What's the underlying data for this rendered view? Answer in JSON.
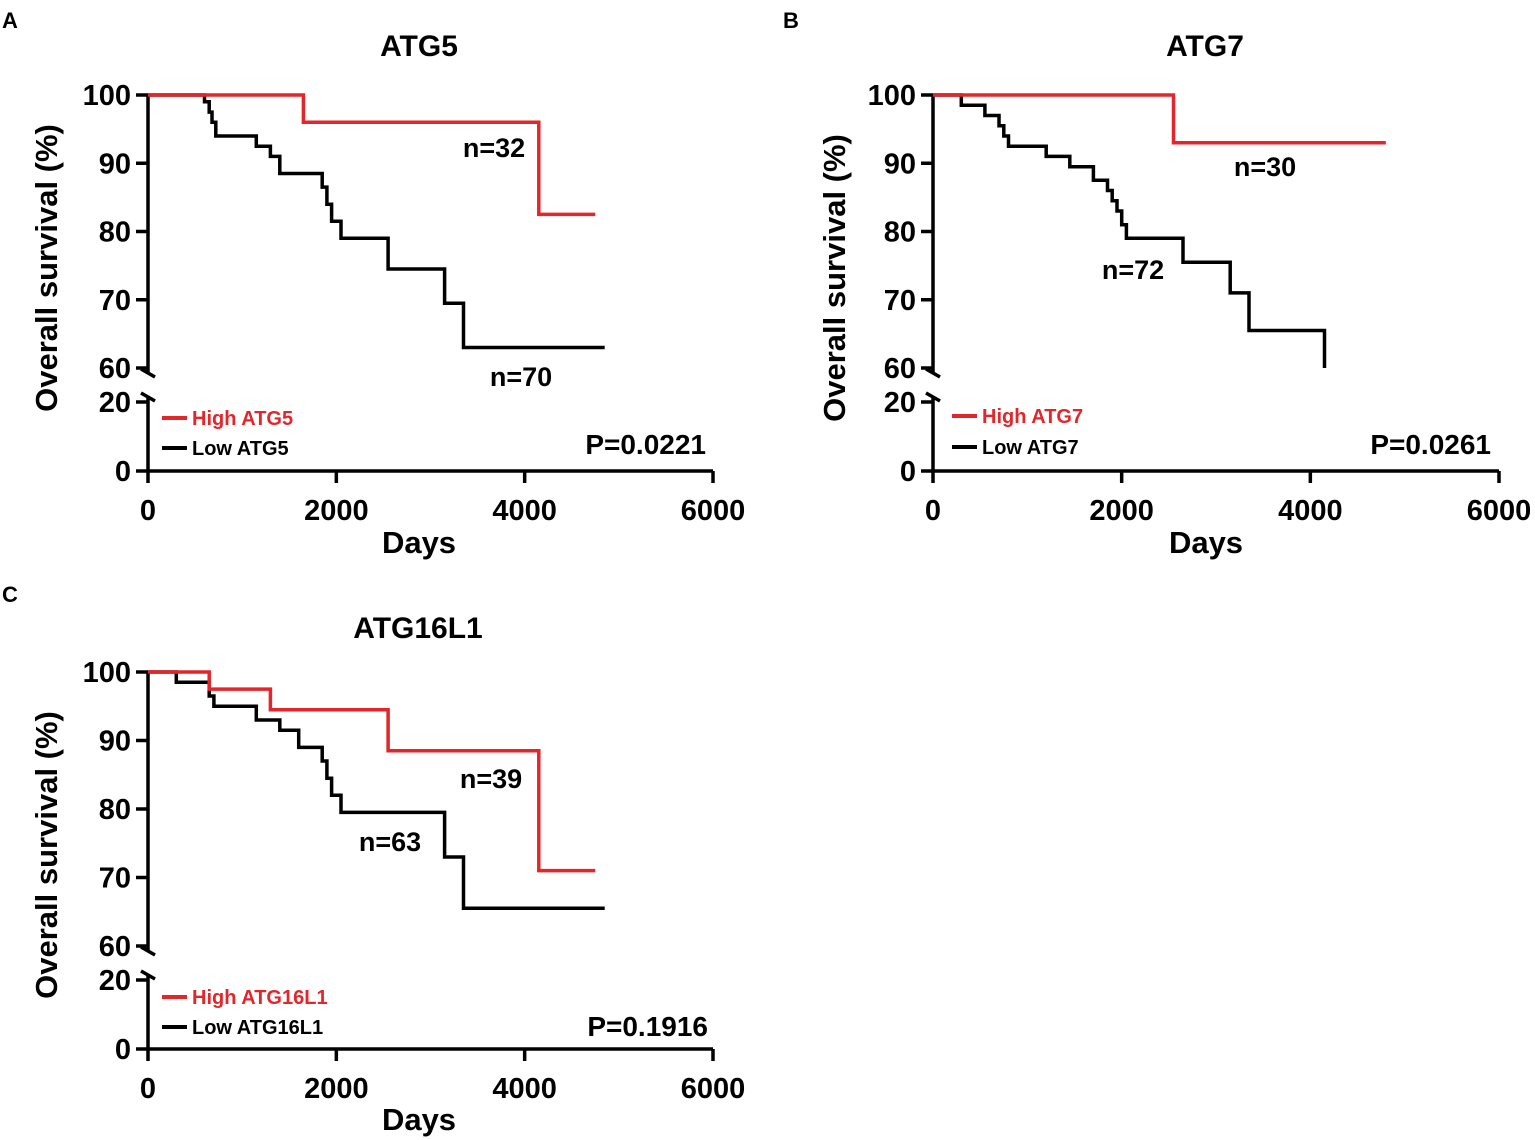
{
  "colors": {
    "high": "#e2262a",
    "low": "#000000"
  },
  "chart_data": [
    {
      "panel": "A",
      "type": "line",
      "step": true,
      "title": "ATG5",
      "xlabel": "Days",
      "ylabel": "Overall survival (%)",
      "xlim": [
        0,
        6000
      ],
      "xticks": [
        0,
        2000,
        4000,
        6000
      ],
      "yticks_upper": [
        60,
        70,
        80,
        90,
        100
      ],
      "yticks_lower": [
        0,
        20
      ],
      "y_axis_break": [
        20,
        60
      ],
      "legend_position": "bottom-left",
      "pvalue": "P=0.0221",
      "series": [
        {
          "key": "high",
          "name": "High ATG5",
          "n_label": "n=32",
          "points": [
            [
              0,
              100
            ],
            [
              1650,
              100
            ],
            [
              1650,
              96
            ],
            [
              4150,
              96
            ],
            [
              4150,
              82.5
            ],
            [
              4750,
              82.5
            ]
          ]
        },
        {
          "key": "low",
          "name": "Low ATG5",
          "n_label": "n=70",
          "points": [
            [
              0,
              100
            ],
            [
              600,
              100
            ],
            [
              600,
              99
            ],
            [
              650,
              99
            ],
            [
              650,
              97.5
            ],
            [
              680,
              97.5
            ],
            [
              680,
              96
            ],
            [
              720,
              96
            ],
            [
              720,
              94
            ],
            [
              1150,
              94
            ],
            [
              1150,
              92.5
            ],
            [
              1300,
              92.5
            ],
            [
              1300,
              91
            ],
            [
              1400,
              91
            ],
            [
              1400,
              88.5
            ],
            [
              1850,
              88.5
            ],
            [
              1850,
              86.5
            ],
            [
              1900,
              86.5
            ],
            [
              1900,
              84
            ],
            [
              1950,
              84
            ],
            [
              1950,
              81.5
            ],
            [
              2050,
              81.5
            ],
            [
              2050,
              79
            ],
            [
              2550,
              79
            ],
            [
              2550,
              74.5
            ],
            [
              3150,
              74.5
            ],
            [
              3150,
              69.5
            ],
            [
              3350,
              69.5
            ],
            [
              3350,
              63
            ],
            [
              4850,
              63
            ]
          ]
        }
      ]
    },
    {
      "panel": "B",
      "type": "line",
      "step": true,
      "title": "ATG7",
      "xlabel": "Days",
      "ylabel": "Overall survival (%)",
      "xlim": [
        0,
        6000
      ],
      "xticks": [
        0,
        2000,
        4000,
        6000
      ],
      "yticks_upper": [
        60,
        70,
        80,
        90,
        100
      ],
      "yticks_lower": [
        0,
        20
      ],
      "y_axis_break": [
        20,
        60
      ],
      "legend_position": "bottom-left",
      "pvalue": "P=0.0261",
      "series": [
        {
          "key": "high",
          "name": "High ATG7",
          "n_label": "n=30",
          "points": [
            [
              0,
              100
            ],
            [
              2550,
              100
            ],
            [
              2550,
              93
            ],
            [
              4800,
              93
            ]
          ]
        },
        {
          "key": "low",
          "name": "Low ATG7",
          "n_label": "n=72",
          "points": [
            [
              0,
              100
            ],
            [
              300,
              100
            ],
            [
              300,
              98.5
            ],
            [
              550,
              98.5
            ],
            [
              550,
              97
            ],
            [
              700,
              97
            ],
            [
              700,
              95.5
            ],
            [
              750,
              95.5
            ],
            [
              750,
              94
            ],
            [
              800,
              94
            ],
            [
              800,
              92.5
            ],
            [
              1200,
              92.5
            ],
            [
              1200,
              91
            ],
            [
              1450,
              91
            ],
            [
              1450,
              89.5
            ],
            [
              1700,
              89.5
            ],
            [
              1700,
              87.5
            ],
            [
              1850,
              87.5
            ],
            [
              1850,
              86
            ],
            [
              1900,
              86
            ],
            [
              1900,
              84.5
            ],
            [
              1950,
              84.5
            ],
            [
              1950,
              83
            ],
            [
              2000,
              83
            ],
            [
              2000,
              81
            ],
            [
              2050,
              81
            ],
            [
              2050,
              79
            ],
            [
              2650,
              79
            ],
            [
              2650,
              75.5
            ],
            [
              3150,
              75.5
            ],
            [
              3150,
              71
            ],
            [
              3350,
              71
            ],
            [
              3350,
              65.5
            ],
            [
              4150,
              65.5
            ],
            [
              4150,
              60
            ]
          ]
        }
      ]
    },
    {
      "panel": "C",
      "type": "line",
      "step": true,
      "title": "ATG16L1",
      "xlabel": "Days",
      "ylabel": "Overall survival (%)",
      "xlim": [
        0,
        6000
      ],
      "xticks": [
        0,
        2000,
        4000,
        6000
      ],
      "yticks_upper": [
        60,
        70,
        80,
        90,
        100
      ],
      "yticks_lower": [
        0,
        20
      ],
      "y_axis_break": [
        20,
        60
      ],
      "legend_position": "bottom-left",
      "pvalue": "P=0.1916",
      "series": [
        {
          "key": "high",
          "name": "High ATG16L1",
          "n_label": "n=39",
          "points": [
            [
              0,
              100
            ],
            [
              650,
              100
            ],
            [
              650,
              97.5
            ],
            [
              1300,
              97.5
            ],
            [
              1300,
              94.5
            ],
            [
              2550,
              94.5
            ],
            [
              2550,
              88.5
            ],
            [
              4150,
              88.5
            ],
            [
              4150,
              71
            ],
            [
              4750,
              71
            ]
          ]
        },
        {
          "key": "low",
          "name": "Low ATG16L1",
          "n_label": "n=63",
          "points": [
            [
              0,
              100
            ],
            [
              300,
              100
            ],
            [
              300,
              98.5
            ],
            [
              650,
              98.5
            ],
            [
              650,
              96.5
            ],
            [
              700,
              96.5
            ],
            [
              700,
              95
            ],
            [
              1150,
              95
            ],
            [
              1150,
              93
            ],
            [
              1400,
              93
            ],
            [
              1400,
              91.5
            ],
            [
              1600,
              91.5
            ],
            [
              1600,
              89
            ],
            [
              1850,
              89
            ],
            [
              1850,
              87
            ],
            [
              1900,
              87
            ],
            [
              1900,
              84.5
            ],
            [
              1950,
              84.5
            ],
            [
              1950,
              82
            ],
            [
              2050,
              82
            ],
            [
              2050,
              79.5
            ],
            [
              3150,
              79.5
            ],
            [
              3150,
              73
            ],
            [
              3350,
              73
            ],
            [
              3350,
              65.5
            ],
            [
              4850,
              65.5
            ]
          ]
        }
      ]
    }
  ]
}
